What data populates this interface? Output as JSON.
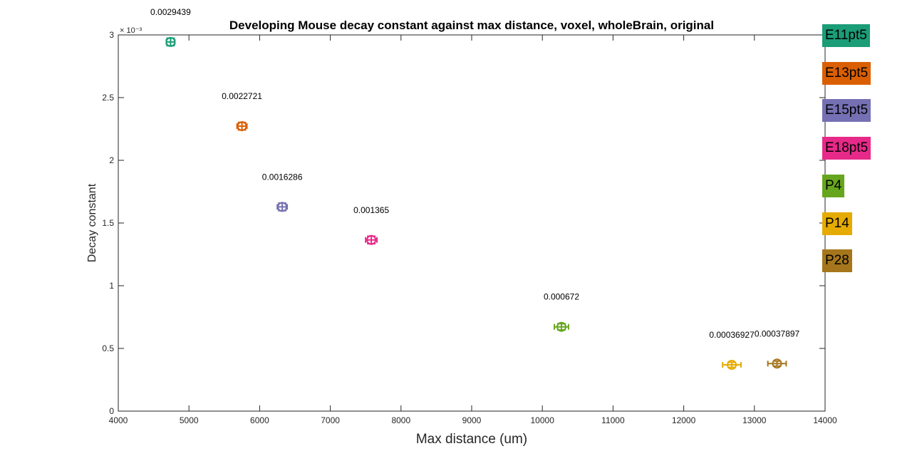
{
  "chart_data": {
    "type": "scatter",
    "title": "Developing Mouse decay constant against max distance, voxel, wholeBrain, original",
    "xlabel": "Max distance (um)",
    "ylabel": "Decay constant",
    "y_exponent_label": "× 10⁻³",
    "xlim": [
      4000,
      14000
    ],
    "ylim": [
      0,
      3
    ],
    "y_scale_factor": 0.001,
    "x_ticks": [
      "4000",
      "5000",
      "6000",
      "7000",
      "8000",
      "9000",
      "10000",
      "11000",
      "12000",
      "13000",
      "14000"
    ],
    "y_ticks": [
      "0",
      "0.5",
      "1",
      "1.5",
      "2",
      "2.5",
      "3"
    ],
    "grid": false,
    "legend_placement": "outside-right",
    "series": [
      {
        "name": "E11pt5",
        "color": "#1b9e77",
        "x": 4740,
        "y": 2.9439,
        "label": "0.0029439",
        "xerr": 60,
        "yerr": 0.03
      },
      {
        "name": "E13pt5",
        "color": "#d95f02",
        "x": 5750,
        "y": 2.2721,
        "label": "0.0022721",
        "xerr": 70,
        "yerr": 0.03
      },
      {
        "name": "E15pt5",
        "color": "#7570b3",
        "x": 6320,
        "y": 1.6286,
        "label": "0.0016286",
        "xerr": 70,
        "yerr": 0.03
      },
      {
        "name": "E18pt5",
        "color": "#e7298a",
        "x": 7580,
        "y": 1.365,
        "label": "0.001365",
        "xerr": 80,
        "yerr": 0.03
      },
      {
        "name": "P4",
        "color": "#66a61e",
        "x": 10270,
        "y": 0.672,
        "label": "0.000672",
        "xerr": 100,
        "yerr": 0.025
      },
      {
        "name": "P14",
        "color": "#e6ab02",
        "x": 12680,
        "y": 0.36927,
        "label": "0.00036927",
        "xerr": 130,
        "yerr": 0.02
      },
      {
        "name": "P28",
        "color": "#a6761d",
        "x": 13320,
        "y": 0.37897,
        "label": "0.00037897",
        "xerr": 130,
        "yerr": 0.02
      }
    ]
  }
}
